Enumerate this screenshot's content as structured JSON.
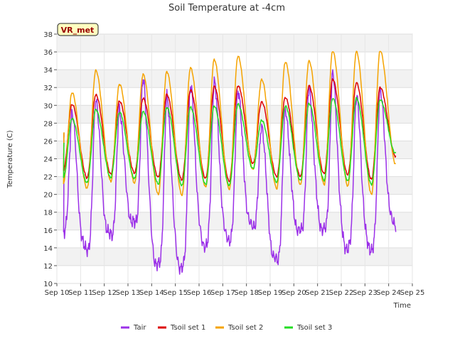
{
  "chart_data": {
    "type": "line",
    "title": "Soil Temperature at -4cm",
    "xlabel": "Time",
    "ylabel": "Temperature (C)",
    "badge": "VR_met",
    "ylim": [
      10,
      38
    ],
    "yticks": [
      10,
      12,
      14,
      16,
      18,
      20,
      22,
      24,
      26,
      28,
      30,
      32,
      34,
      36,
      38
    ],
    "xlim": [
      0,
      15
    ],
    "xtick_labels": [
      "Sep 10",
      "Sep 11",
      "Sep 12",
      "Sep 13",
      "Sep 14",
      "Sep 15",
      "Sep 16",
      "Sep 17",
      "Sep 18",
      "Sep 19",
      "Sep 20",
      "Sep 21",
      "Sep 22",
      "Sep 23",
      "Sep 24",
      "Sep 25"
    ],
    "grid": true,
    "legend": "bottom",
    "series": [
      {
        "name": "Tair",
        "color": "#9b30e8",
        "width": 1.5,
        "min": [
          15.9,
          13.9,
          15.5,
          16.8,
          12.1,
          11.8,
          14.3,
          15.0,
          16.5,
          12.7,
          15.9,
          16.1,
          14.0,
          13.9
        ],
        "max": [
          29.2,
          30.8,
          29.5,
          32.9,
          30.8,
          32.1,
          32.7,
          31.8,
          27.8,
          29.5,
          31.8,
          33.5,
          31.0,
          31.8
        ],
        "end": 16.7
      },
      {
        "name": "Tsoil set 1",
        "color": "#dd0000",
        "width": 1.5,
        "min": [
          22.7,
          21.9,
          22.3,
          22.4,
          21.9,
          21.6,
          21.8,
          21.5,
          23.5,
          22.0,
          22.0,
          22.3,
          22.2,
          21.7
        ],
        "max": [
          30.1,
          31.2,
          30.5,
          30.8,
          31.2,
          31.7,
          32.1,
          32.2,
          30.4,
          30.9,
          32.2,
          32.9,
          32.5,
          32.0
        ],
        "end": 24.3
      },
      {
        "name": "Tsoil set 2",
        "color": "#f5a300",
        "width": 1.5,
        "min": [
          21.3,
          20.7,
          21.5,
          21.3,
          20.0,
          19.9,
          20.8,
          20.6,
          22.8,
          20.7,
          21.1,
          21.1,
          20.9,
          20.0
        ],
        "max": [
          31.4,
          33.9,
          32.4,
          33.5,
          33.8,
          34.2,
          35.1,
          35.5,
          32.9,
          34.9,
          35.0,
          36.1,
          36.0,
          36.1
        ],
        "end": 23.4
      },
      {
        "name": "Tsoil set 3",
        "color": "#22dd22",
        "width": 1.5,
        "min": [
          21.9,
          21.3,
          21.9,
          21.8,
          21.2,
          21.0,
          21.1,
          21.0,
          22.9,
          21.4,
          21.6,
          21.6,
          21.5,
          21.1
        ],
        "max": [
          28.5,
          29.5,
          29.2,
          29.3,
          29.8,
          29.8,
          29.9,
          30.1,
          28.3,
          29.9,
          30.2,
          30.8,
          30.8,
          30.6
        ],
        "end": 24.6
      }
    ]
  }
}
